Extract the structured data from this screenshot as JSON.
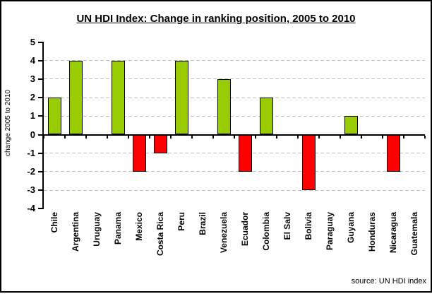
{
  "title": "UN HDI Index: Change in ranking position, 2005 to 2010",
  "source_note": "source: UN HDI index",
  "chart_data": {
    "type": "bar",
    "title": "UN HDI Index: Change in ranking position, 2005 to 2010",
    "xlabel": "",
    "ylabel": "change 2005 to 2010",
    "categories": [
      "Chile",
      "Argentina",
      "Uruguay",
      "Panama",
      "Mexico",
      "Costa Rica",
      "Peru",
      "Brazil",
      "Venezuela",
      "Ecuador",
      "Colombia",
      "El Salv",
      "Bolivia",
      "Paraguay",
      "Guyana",
      "Honduras",
      "Nicaragua",
      "Guatemala"
    ],
    "values": [
      2,
      4,
      0,
      4,
      -2,
      -1,
      4,
      0,
      3,
      -2,
      2,
      0,
      -3,
      0,
      1,
      0,
      -2,
      0
    ],
    "ylim": [
      -4,
      5
    ],
    "ytick_step": 1,
    "yticks": [
      5,
      4,
      3,
      2,
      1,
      0,
      -1,
      -2,
      -3,
      -4
    ],
    "grid": "horizontal-dashed",
    "legend": "none",
    "source": "source: UN HDI index",
    "colors": {
      "positive_bar": "#99CC00",
      "negative_bar": "#FF0000",
      "bar_border": "#000000",
      "gridline": "#BFBFBF",
      "axis": "#000000",
      "background": "#FFFFFF"
    }
  }
}
